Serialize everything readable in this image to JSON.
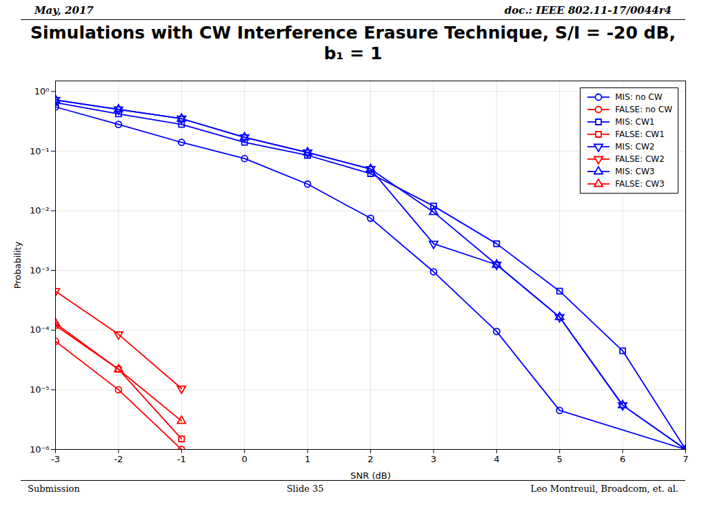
{
  "chart_data": {
    "type": "line",
    "title": "Simulations with CW Interference Erasure Technique, S/I = -20 dB, b₁ = 1",
    "annotations": [
      "May, 2017",
      "doc.: IEEE 802.11-17/0044r4",
      "Submission",
      "Slide 35",
      "Leo Montreuil, Broadcom, et. al."
    ],
    "x_label": "SNR (dB)",
    "y_label": "Probability",
    "log": "y",
    "grid": true,
    "legend": "upper right",
    "xlim": [
      -3,
      7
    ],
    "xticks": [
      -3,
      -2,
      -1,
      0,
      1,
      2,
      3,
      4,
      5,
      6,
      7
    ],
    "ylim": [
      1e-06,
      1.5
    ],
    "yticks": [
      {
        "value": 1,
        "label": "10⁰"
      },
      {
        "value": 0.1,
        "label": "10⁻¹"
      },
      {
        "value": 0.01,
        "label": "10⁻²"
      },
      {
        "value": 0.001,
        "label": "10⁻³"
      },
      {
        "value": 0.0001,
        "label": "10⁻⁴"
      },
      {
        "value": 1e-05,
        "label": "10⁻⁵"
      },
      {
        "value": 1e-06,
        "label": "10⁻⁶"
      }
    ],
    "series": [
      {
        "name": "MIS: no CW",
        "color": "#0000ff",
        "marker": "circle",
        "x": [
          -3,
          -2,
          -1,
          0,
          1,
          2,
          3,
          4,
          5,
          7
        ],
        "values": [
          0.55,
          0.28,
          0.14,
          0.075,
          0.028,
          0.0075,
          0.00095,
          9.5e-05,
          4.5e-06,
          1e-06
        ]
      },
      {
        "name": "FALSE: no CW",
        "color": "#ff0000",
        "marker": "circle",
        "x": [
          -3,
          -2,
          -1
        ],
        "values": [
          6.5e-05,
          1e-05,
          1e-06
        ]
      },
      {
        "name": "MIS: CW1",
        "color": "#0000ff",
        "marker": "square",
        "x": [
          -3,
          -2,
          -1,
          0,
          1,
          2,
          3,
          4,
          5,
          6,
          7
        ],
        "values": [
          0.65,
          0.42,
          0.28,
          0.14,
          0.085,
          0.042,
          0.012,
          0.0028,
          0.00045,
          4.5e-05,
          1e-06
        ]
      },
      {
        "name": "FALSE: CW1",
        "color": "#ff0000",
        "marker": "square",
        "x": [
          -3,
          -2,
          -1
        ],
        "values": [
          0.00012,
          2.2e-05,
          1.5e-06
        ]
      },
      {
        "name": "MIS: CW2",
        "color": "#0000ff",
        "marker": "triangle-down",
        "x": [
          -3,
          -2,
          -1,
          0,
          1,
          2,
          3,
          4,
          5,
          6,
          7
        ],
        "values": [
          0.72,
          0.5,
          0.35,
          0.17,
          0.095,
          0.05,
          0.0028,
          0.00125,
          0.000165,
          5.5e-06,
          1e-06
        ]
      },
      {
        "name": "FALSE: CW2",
        "color": "#ff0000",
        "marker": "triangle-down",
        "x": [
          -3,
          -2,
          -1
        ],
        "values": [
          0.00045,
          8.5e-05,
          1.05e-05
        ]
      },
      {
        "name": "MIS: CW3",
        "color": "#0000ff",
        "marker": "triangle-up",
        "x": [
          -3,
          -2,
          -1,
          0,
          1,
          2,
          3,
          4,
          5,
          6,
          7
        ],
        "values": [
          0.72,
          0.5,
          0.35,
          0.17,
          0.095,
          0.05,
          0.0095,
          0.00125,
          0.000165,
          5.5e-06,
          1e-06
        ]
      },
      {
        "name": "FALSE: CW3",
        "color": "#ff0000",
        "marker": "triangle-up",
        "x": [
          -3,
          -2,
          -1
        ],
        "values": [
          0.00013,
          2.2e-05,
          3e-06
        ]
      }
    ]
  }
}
